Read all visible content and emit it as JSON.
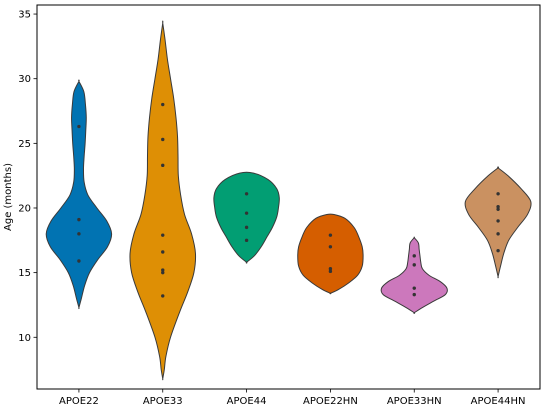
{
  "chart_data": {
    "type": "violin",
    "ylabel": "Age (months)",
    "xlabel": "",
    "ylim": [
      6,
      35.7
    ],
    "yticks": [
      10,
      15,
      20,
      25,
      30,
      35
    ],
    "grid": false,
    "categories": [
      "APOE22",
      "APOE33",
      "APOE44",
      "APOE22HN",
      "APOE33HN",
      "APOE44HN"
    ],
    "series": [
      {
        "color": "#0173b2",
        "points": [
          15.9,
          18.0,
          19.1,
          26.3
        ],
        "profile": [
          [
            12.3,
            0.0
          ],
          [
            13.0,
            1.5
          ],
          [
            14.0,
            3.5
          ],
          [
            15.0,
            6.5
          ],
          [
            16.0,
            11.5
          ],
          [
            17.0,
            17.5
          ],
          [
            18.0,
            20.0
          ],
          [
            19.0,
            17.0
          ],
          [
            20.0,
            11.0
          ],
          [
            21.0,
            5.5
          ],
          [
            22.0,
            3.2
          ],
          [
            23.0,
            2.8
          ],
          [
            24.0,
            3.2
          ],
          [
            25.0,
            3.8
          ],
          [
            26.0,
            4.2
          ],
          [
            27.0,
            4.5
          ],
          [
            28.0,
            4.0
          ],
          [
            29.0,
            3.0
          ],
          [
            29.8,
            0.0
          ]
        ]
      },
      {
        "color": "#de8f05",
        "points": [
          13.2,
          15.0,
          15.2,
          16.6,
          17.9,
          23.3,
          25.3,
          28.0
        ],
        "profile": [
          [
            6.8,
            0.0
          ],
          [
            7.5,
            1.0
          ],
          [
            8.5,
            2.0
          ],
          [
            10.0,
            5.0
          ],
          [
            12.0,
            11.0
          ],
          [
            13.5,
            16.0
          ],
          [
            15.0,
            20.0
          ],
          [
            16.5,
            21.0
          ],
          [
            18.0,
            18.5
          ],
          [
            19.5,
            14.0
          ],
          [
            21.0,
            11.5
          ],
          [
            22.5,
            10.0
          ],
          [
            24.0,
            9.8
          ],
          [
            25.5,
            9.5
          ],
          [
            27.0,
            8.5
          ],
          [
            28.5,
            7.0
          ],
          [
            30.0,
            5.0
          ],
          [
            31.5,
            3.0
          ],
          [
            33.0,
            1.5
          ],
          [
            34.3,
            0.0
          ]
        ]
      },
      {
        "color": "#029e73",
        "points": [
          17.5,
          18.5,
          19.6,
          21.1
        ],
        "profile": [
          [
            15.8,
            0.0
          ],
          [
            16.3,
            4.5
          ],
          [
            17.0,
            8.5
          ],
          [
            17.8,
            12.0
          ],
          [
            18.5,
            15.0
          ],
          [
            19.3,
            17.5
          ],
          [
            20.0,
            18.5
          ],
          [
            20.8,
            19.0
          ],
          [
            21.5,
            17.5
          ],
          [
            22.2,
            12.5
          ],
          [
            22.7,
            4.0
          ]
        ]
      },
      {
        "color": "#d55e00",
        "points": [
          15.1,
          15.3,
          17.0,
          17.9
        ],
        "profile": [
          [
            13.4,
            0.0
          ],
          [
            13.7,
            4.5
          ],
          [
            14.2,
            10.0
          ],
          [
            14.8,
            15.0
          ],
          [
            15.5,
            17.5
          ],
          [
            16.3,
            18.0
          ],
          [
            17.0,
            17.5
          ],
          [
            17.8,
            15.5
          ],
          [
            18.5,
            13.0
          ],
          [
            19.2,
            8.0
          ],
          [
            19.5,
            2.0
          ]
        ]
      },
      {
        "color": "#cc78bc",
        "points": [
          13.3,
          13.8,
          15.6,
          16.3
        ],
        "profile": [
          [
            11.9,
            0.0
          ],
          [
            12.3,
            5.0
          ],
          [
            12.8,
            12.0
          ],
          [
            13.3,
            19.0
          ],
          [
            13.8,
            20.0
          ],
          [
            14.3,
            16.0
          ],
          [
            14.8,
            9.0
          ],
          [
            15.3,
            5.0
          ],
          [
            15.8,
            4.0
          ],
          [
            16.3,
            3.5
          ],
          [
            16.8,
            3.0
          ],
          [
            17.3,
            2.5
          ],
          [
            17.7,
            0.0
          ]
        ]
      },
      {
        "color": "#ca9161",
        "points": [
          16.7,
          18.0,
          19.0,
          19.9,
          20.1,
          21.1
        ],
        "profile": [
          [
            14.7,
            0.0
          ],
          [
            15.5,
            1.5
          ],
          [
            16.5,
            3.5
          ],
          [
            17.5,
            6.5
          ],
          [
            18.5,
            12.0
          ],
          [
            19.5,
            18.0
          ],
          [
            20.5,
            20.0
          ],
          [
            21.5,
            14.0
          ],
          [
            22.5,
            6.0
          ],
          [
            23.1,
            0.0
          ]
        ]
      }
    ]
  }
}
